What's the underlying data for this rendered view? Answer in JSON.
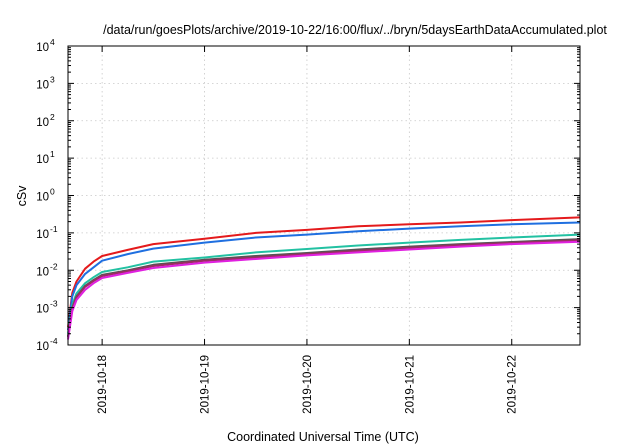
{
  "chart_data": {
    "type": "line",
    "title": "/data/run/goesPlots/archive/2019-10-22/16:00/flux/../bryn/5daysEarthDataAccumulated.plot",
    "xlabel": "Coordinated Universal Time (UTC)",
    "ylabel": "cSv",
    "yscale": "log",
    "ylim": [
      0.0001,
      10000
    ],
    "xlim": [
      "2019-10-17T16:00",
      "2019-10-22T16:00"
    ],
    "grid": true,
    "legend": "none",
    "xticks": [
      "2019-10-18",
      "2019-10-19",
      "2019-10-20",
      "2019-10-21",
      "2019-10-22"
    ],
    "yticks": [
      {
        "base": "10",
        "exp": "-4"
      },
      {
        "base": "10",
        "exp": "-3"
      },
      {
        "base": "10",
        "exp": "-2"
      },
      {
        "base": "10",
        "exp": "-1"
      },
      {
        "base": "10",
        "exp": "0"
      },
      {
        "base": "10",
        "exp": "1"
      },
      {
        "base": "10",
        "exp": "2"
      },
      {
        "base": "10",
        "exp": "3"
      },
      {
        "base": "10",
        "exp": "4"
      }
    ],
    "x": [
      "2019-10-17T16:00",
      "2019-10-17T17:00",
      "2019-10-17T18:00",
      "2019-10-17T20:00",
      "2019-10-17T22:00",
      "2019-10-18T00:00",
      "2019-10-18T06:00",
      "2019-10-18T12:00",
      "2019-10-19T00:00",
      "2019-10-19T12:00",
      "2019-10-20T00:00",
      "2019-10-20T12:00",
      "2019-10-21T00:00",
      "2019-10-21T12:00",
      "2019-10-22T00:00",
      "2019-10-22T16:00"
    ],
    "series": [
      {
        "color": "#e41a1c",
        "values": [
          0.0003,
          0.0025,
          0.005,
          0.011,
          0.017,
          0.024,
          0.035,
          0.05,
          0.07,
          0.1,
          0.12,
          0.15,
          0.17,
          0.19,
          0.22,
          0.26
        ]
      },
      {
        "color": "#1f6fe0",
        "values": [
          0.00025,
          0.002,
          0.004,
          0.008,
          0.012,
          0.018,
          0.027,
          0.038,
          0.055,
          0.075,
          0.09,
          0.11,
          0.13,
          0.15,
          0.17,
          0.19
        ]
      },
      {
        "color": "#22c1a2",
        "values": [
          0.0002,
          0.0012,
          0.0024,
          0.0045,
          0.0065,
          0.009,
          0.012,
          0.017,
          0.022,
          0.03,
          0.037,
          0.046,
          0.055,
          0.065,
          0.075,
          0.09
        ]
      },
      {
        "color": "#555555",
        "values": [
          0.00017,
          0.001,
          0.002,
          0.0038,
          0.0055,
          0.0075,
          0.01,
          0.014,
          0.019,
          0.024,
          0.029,
          0.036,
          0.043,
          0.05,
          0.057,
          0.068
        ]
      },
      {
        "color": "#9b2d62",
        "values": [
          0.00016,
          0.00095,
          0.0019,
          0.0036,
          0.0052,
          0.007,
          0.0095,
          0.013,
          0.018,
          0.022,
          0.027,
          0.033,
          0.04,
          0.047,
          0.054,
          0.063
        ]
      },
      {
        "color": "#e020e0",
        "values": [
          0.00014,
          0.0008,
          0.0016,
          0.003,
          0.0045,
          0.0062,
          0.0085,
          0.0115,
          0.016,
          0.02,
          0.025,
          0.03,
          0.036,
          0.043,
          0.05,
          0.058
        ]
      }
    ]
  }
}
